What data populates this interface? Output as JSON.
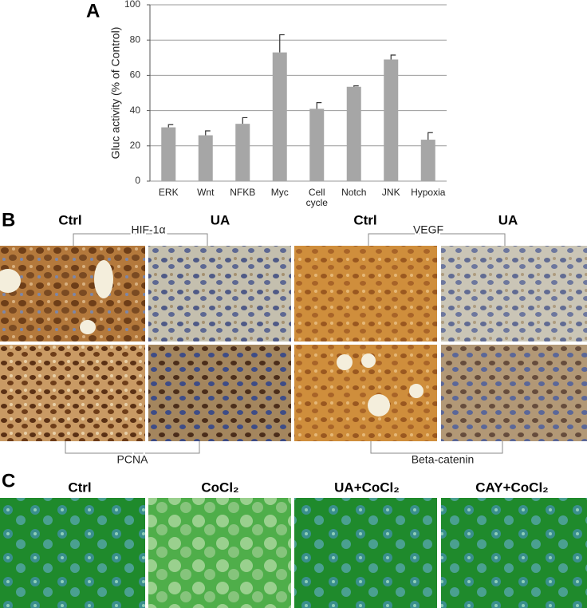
{
  "panel_a_label": "A",
  "chart_data": {
    "type": "bar",
    "y_label": "Gluc activity (% of Control)",
    "categories": [
      "ERK",
      "Wnt",
      "NFKB",
      "Myc",
      "Cell\ncycle",
      "Notch",
      "JNK",
      "Hypoxia"
    ],
    "values": [
      30.5,
      26,
      32.5,
      73,
      41,
      53.5,
      69,
      23.5
    ],
    "errors": [
      1.5,
      2.5,
      3.5,
      10,
      3.5,
      0.5,
      2.5,
      4
    ],
    "color": "#a6a6a6",
    "ylim": [
      0,
      100
    ],
    "yticks": [
      0,
      20,
      40,
      60,
      80,
      100
    ],
    "grid": true
  },
  "panel_b": {
    "label": "B",
    "columns": [
      "Ctrl",
      "UA",
      "Ctrl",
      "UA"
    ],
    "markers_top": [
      "HIF-1α",
      "VEGF"
    ],
    "markers_bottom": [
      "PCNA",
      "Beta-catenin"
    ]
  },
  "panel_c": {
    "label": "C",
    "columns": [
      "Ctrl",
      "CoCl₂",
      "UA+CoCl₂",
      "CAY+CoCl₂"
    ]
  }
}
